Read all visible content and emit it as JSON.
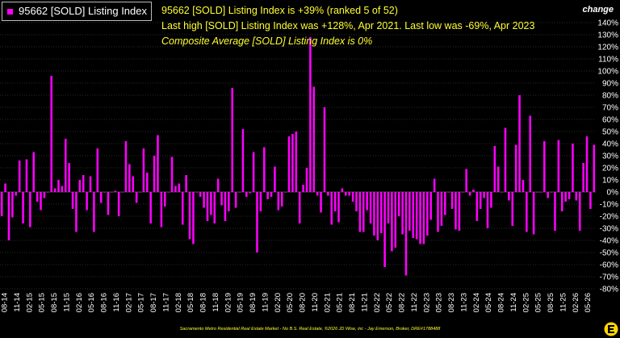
{
  "legend": {
    "label": "95662 [SOLD] Listing Index"
  },
  "info": {
    "line1": "95662 [SOLD] Listing Index is +39% (ranked 5 of 52)",
    "line2": "Last high [SOLD] Listing Index was +128%, Apr 2021. Last low was -69%, Apr 2023",
    "line3": "Composite Average [SOLD] Listing Index is 0%"
  },
  "change_label": "change",
  "footer": "Sacramento Metro Residential Real Estate Market - No B.S. Real Estate, ©2026 JD Wise, inc - Jay Emerson, Broker, DRE#1788488",
  "colors": {
    "bar": "#ff00ff",
    "text": "#ffffff",
    "info": "#ffff33",
    "background": "#000000",
    "grid": "#555555"
  },
  "chart_data": {
    "type": "bar",
    "ylim": [
      -80,
      140
    ],
    "y_ticks": [
      140,
      130,
      120,
      110,
      100,
      90,
      80,
      70,
      60,
      50,
      40,
      30,
      20,
      10,
      0,
      -10,
      -20,
      -30,
      -40,
      -50,
      -60,
      -70,
      -80
    ],
    "y_tick_labels": [
      "140%",
      "130%",
      "120%",
      "110%",
      "100%",
      "90%",
      "80%",
      "70%",
      "60%",
      "50%",
      "40%",
      "30%",
      "20%",
      "10%",
      "0%",
      "-10%",
      "-20%",
      "-30%",
      "-40%",
      "-50%",
      "-60%",
      "-70%",
      "-80%"
    ],
    "x_tick_labels": [
      "08-14",
      "11-14",
      "02-15",
      "05-15",
      "08-15",
      "11-15",
      "02-16",
      "05-16",
      "08-16",
      "11-16",
      "02-17",
      "05-17",
      "08-17",
      "11-17",
      "02-18",
      "05-18",
      "08-18",
      "11-18",
      "02-19",
      "05-19",
      "08-19",
      "11-19",
      "02-20",
      "05-20",
      "08-20",
      "11-20",
      "02-21",
      "05-21",
      "08-21",
      "11-21",
      "02-22",
      "05-22",
      "08-22",
      "11-22",
      "02-23",
      "05-23",
      "08-23",
      "11-23",
      "02-24",
      "05-24",
      "08-24",
      "11-24",
      "02-25",
      "05-25",
      "08-25",
      "11-25",
      "02-26",
      "05-26"
    ],
    "values": [
      -20,
      7,
      -40,
      -21,
      -3,
      26,
      -26,
      27,
      -29,
      33,
      -8,
      -15,
      -5,
      0,
      96,
      3,
      10,
      5,
      44,
      24,
      -14,
      -33,
      10,
      14,
      -15,
      13,
      -33,
      36,
      -9,
      0,
      -19,
      0,
      1,
      -20,
      0,
      42,
      23,
      13,
      -9,
      0,
      36,
      16,
      -26,
      30,
      47,
      -29,
      -12,
      0,
      29,
      5,
      7,
      -27,
      14,
      -39,
      -43,
      0,
      -4,
      -13,
      -24,
      -19,
      -26,
      11,
      -11,
      -24,
      -16,
      86,
      -13,
      0,
      52,
      -4,
      -1,
      33,
      -50,
      -16,
      37,
      -6,
      -4,
      21,
      -15,
      -12,
      0,
      46,
      48,
      50,
      -26,
      6,
      20,
      128,
      87,
      -3,
      -17,
      70,
      -3,
      -27,
      -16,
      -25,
      3,
      -3,
      -3,
      -8,
      -16,
      -33,
      -33,
      -15,
      -26,
      -36,
      -40,
      -34,
      -62,
      -26,
      -49,
      -46,
      -20,
      -35,
      -69,
      -32,
      -38,
      -39,
      -43,
      -43,
      -36,
      -23,
      11,
      -33,
      -28,
      -19,
      0,
      -14,
      -31,
      -32,
      0,
      19,
      -3,
      2,
      -24,
      -14,
      -5,
      -30,
      -13,
      38,
      21,
      0,
      53,
      -7,
      -28,
      39,
      80,
      10,
      -33,
      63,
      -35,
      0,
      0,
      42,
      -5,
      0,
      -32,
      43,
      -16,
      -8,
      -6,
      40,
      -7,
      -32,
      24,
      46,
      -14,
      39
    ]
  }
}
